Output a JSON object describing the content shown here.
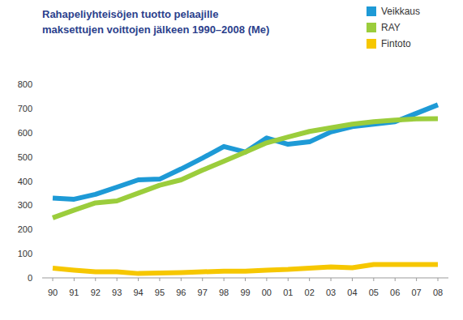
{
  "chart_data": {
    "type": "line",
    "title": "Rahapeliyhteisöjen tuotto pelaajille\nmaksettujen voittojen jälkeen 1990–2008 (Me)",
    "categories": [
      "90",
      "91",
      "92",
      "93",
      "94",
      "95",
      "96",
      "97",
      "98",
      "99",
      "00",
      "01",
      "02",
      "03",
      "04",
      "05",
      "06",
      "07",
      "08"
    ],
    "series": [
      {
        "name": "Veikkaus",
        "color": "#1e9ad6",
        "values": [
          330,
          325,
          345,
          375,
          405,
          408,
          450,
          495,
          543,
          520,
          578,
          552,
          562,
          603,
          625,
          635,
          645,
          680,
          715
        ]
      },
      {
        "name": "RAY",
        "color": "#9bcd3c",
        "values": [
          248,
          280,
          310,
          318,
          350,
          383,
          405,
          445,
          482,
          520,
          558,
          582,
          605,
          620,
          635,
          645,
          652,
          657,
          658
        ]
      },
      {
        "name": "Fintoto",
        "color": "#f6c700",
        "values": [
          40,
          32,
          25,
          25,
          18,
          20,
          22,
          25,
          28,
          28,
          32,
          35,
          40,
          45,
          42,
          55,
          55,
          55,
          55
        ]
      }
    ],
    "ylim": [
      0,
      800
    ],
    "yticks": [
      0,
      100,
      200,
      300,
      400,
      500,
      600,
      700,
      800
    ],
    "grid": false,
    "legend": "top-right"
  }
}
